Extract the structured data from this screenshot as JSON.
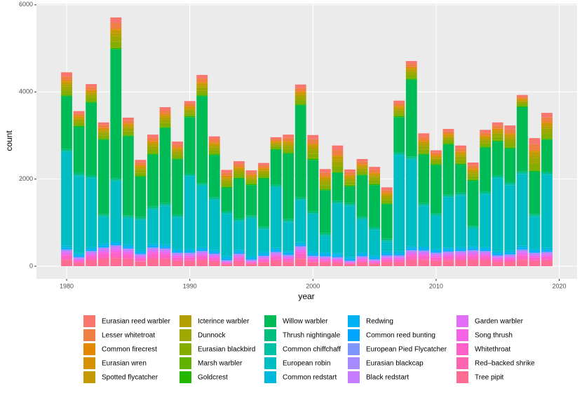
{
  "chart_data": {
    "type": "bar",
    "stacked": true,
    "xlabel": "year",
    "ylabel": "count",
    "x": [
      1980,
      1981,
      1982,
      1983,
      1984,
      1985,
      1986,
      1987,
      1988,
      1989,
      1990,
      1991,
      1992,
      1993,
      1994,
      1995,
      1996,
      1997,
      1998,
      1999,
      2000,
      2001,
      2002,
      2003,
      2004,
      2005,
      2006,
      2007,
      2008,
      2009,
      2010,
      2011,
      2012,
      2013,
      2014,
      2015,
      2016,
      2017,
      2018,
      2019
    ],
    "xlim": [
      1977.55,
      2021.45
    ],
    "xticks": [
      1980,
      1990,
      2000,
      2010,
      2020
    ],
    "ylim": [
      -290,
      6030
    ],
    "yticks": [
      0,
      2000,
      4000,
      6000
    ],
    "grid": true,
    "series": [
      {
        "name": "Eurasian reed warbler",
        "color": "#F8766D",
        "values": [
          94,
          56,
          70,
          64,
          130,
          70,
          62,
          76,
          80,
          66,
          58,
          82,
          70,
          66,
          64,
          52,
          56,
          42,
          72,
          80,
          98,
          82,
          110,
          62,
          60,
          68,
          62,
          60,
          70,
          82,
          52,
          56,
          72,
          68,
          66,
          72,
          90,
          40,
          138,
          108
        ]
      },
      {
        "name": "Lesser whitetroat",
        "color": "#EE8043",
        "values": [
          94,
          56,
          70,
          64,
          130,
          70,
          62,
          76,
          80,
          66,
          58,
          82,
          70,
          66,
          64,
          52,
          56,
          42,
          72,
          80,
          98,
          82,
          110,
          62,
          60,
          68,
          62,
          60,
          70,
          82,
          52,
          56,
          72,
          68,
          66,
          72,
          90,
          40,
          138,
          108
        ]
      },
      {
        "name": "Common firecrest",
        "color": "#E38900",
        "values": [
          20,
          20,
          20,
          20,
          20,
          20,
          20,
          20,
          20,
          20,
          20,
          20,
          20,
          20,
          20,
          20,
          20,
          20,
          20,
          20,
          20,
          20,
          20,
          20,
          20,
          20,
          20,
          20,
          20,
          20,
          20,
          20,
          20,
          20,
          20,
          20,
          20,
          20,
          20,
          20
        ]
      },
      {
        "name": "Eurasian wren",
        "color": "#D59100",
        "values": [
          20,
          20,
          20,
          20,
          20,
          20,
          20,
          20,
          20,
          20,
          20,
          20,
          20,
          20,
          20,
          20,
          20,
          20,
          20,
          20,
          20,
          20,
          20,
          20,
          20,
          20,
          20,
          20,
          20,
          20,
          20,
          20,
          20,
          20,
          20,
          20,
          20,
          20,
          20,
          20
        ]
      },
      {
        "name": "Spotted flycatcher",
        "color": "#C59900",
        "values": [
          47,
          28,
          35,
          32,
          65,
          35,
          31,
          38,
          40,
          33,
          29,
          41,
          35,
          33,
          32,
          26,
          28,
          21,
          36,
          40,
          49,
          41,
          55,
          31,
          30,
          34,
          31,
          30,
          35,
          41,
          26,
          28,
          36,
          34,
          33,
          36,
          45,
          20,
          69,
          54
        ]
      },
      {
        "name": "Icterince warbler",
        "color": "#B3A000",
        "values": [
          47,
          28,
          35,
          32,
          65,
          35,
          31,
          38,
          40,
          33,
          29,
          41,
          35,
          33,
          32,
          26,
          28,
          21,
          36,
          40,
          49,
          41,
          55,
          31,
          30,
          34,
          31,
          30,
          35,
          41,
          26,
          28,
          36,
          34,
          33,
          36,
          45,
          20,
          69,
          54
        ]
      },
      {
        "name": "Dunnock",
        "color": "#9DA700",
        "values": [
          94,
          56,
          70,
          64,
          130,
          70,
          62,
          76,
          80,
          66,
          58,
          82,
          70,
          66,
          64,
          52,
          56,
          42,
          72,
          80,
          98,
          82,
          110,
          62,
          60,
          68,
          62,
          60,
          70,
          82,
          52,
          56,
          72,
          68,
          66,
          72,
          90,
          40,
          138,
          108
        ]
      },
      {
        "name": "Eurasian blackbird",
        "color": "#85AD00",
        "values": [
          94,
          56,
          70,
          64,
          130,
          70,
          62,
          76,
          80,
          66,
          58,
          82,
          70,
          66,
          64,
          52,
          56,
          42,
          72,
          80,
          98,
          82,
          110,
          62,
          60,
          68,
          62,
          60,
          70,
          82,
          52,
          56,
          72,
          68,
          66,
          72,
          90,
          40,
          138,
          108
        ]
      },
      {
        "name": "Marsh warbler",
        "color": "#62B200",
        "values": [
          20,
          20,
          20,
          20,
          20,
          20,
          20,
          20,
          20,
          20,
          20,
          20,
          20,
          20,
          20,
          20,
          20,
          20,
          20,
          20,
          20,
          20,
          20,
          20,
          20,
          20,
          20,
          20,
          20,
          20,
          20,
          20,
          20,
          20,
          20,
          20,
          20,
          20,
          20,
          20
        ]
      },
      {
        "name": "Goldcrest",
        "color": "#24B700",
        "values": [
          20,
          20,
          20,
          20,
          20,
          20,
          20,
          20,
          20,
          20,
          20,
          20,
          20,
          20,
          20,
          20,
          20,
          20,
          20,
          20,
          20,
          20,
          20,
          20,
          20,
          20,
          20,
          20,
          20,
          20,
          20,
          20,
          20,
          20,
          20,
          20,
          20,
          20,
          20,
          20
        ]
      },
      {
        "name": "Willow warbler",
        "color": "#00BC56",
        "values": [
          1210,
          1060,
          1660,
          1700,
          2960,
          1810,
          920,
          1190,
          1720,
          1260,
          1290,
          1990,
          960,
          530,
          910,
          690,
          1100,
          790,
          1500,
          2110,
          1180,
          980,
          640,
          380,
          940,
          960,
          790,
          800,
          1760,
          1110,
          1100,
          1140,
          640,
          1030,
          1000,
          770,
          770,
          1470,
          970,
          730
        ]
      },
      {
        "name": "Thrush nightingale",
        "color": "#00BF7D",
        "values": [
          40,
          40,
          40,
          40,
          40,
          40,
          40,
          40,
          40,
          40,
          40,
          40,
          40,
          40,
          40,
          40,
          40,
          40,
          40,
          40,
          40,
          40,
          40,
          40,
          40,
          40,
          40,
          40,
          40,
          40,
          40,
          40,
          40,
          40,
          40,
          40,
          40,
          40,
          40,
          40
        ]
      },
      {
        "name": "Common chiffchaff",
        "color": "#00C0A6",
        "values": [
          30,
          30,
          30,
          30,
          30,
          30,
          30,
          30,
          30,
          30,
          30,
          30,
          30,
          30,
          30,
          30,
          30,
          30,
          30,
          30,
          30,
          30,
          30,
          30,
          30,
          30,
          30,
          30,
          30,
          30,
          30,
          30,
          30,
          30,
          30,
          30,
          30,
          30,
          30,
          30
        ]
      },
      {
        "name": "European robin",
        "color": "#00BFC4",
        "values": [
          2150,
          1770,
          1580,
          610,
          1380,
          600,
          690,
          780,
          880,
          720,
          1660,
          1400,
          1140,
          970,
          650,
          860,
          510,
          1390,
          660,
          960,
          860,
          370,
          1130,
          1160,
          750,
          580,
          220,
          2210,
          1990,
          930,
          750,
          1150,
          1180,
          400,
          1210,
          1680,
          1500,
          1640,
          730,
          1680
        ]
      },
      {
        "name": "Common redstart",
        "color": "#00BADE",
        "values": [
          40,
          40,
          40,
          40,
          40,
          40,
          40,
          40,
          40,
          40,
          40,
          40,
          40,
          40,
          40,
          40,
          40,
          40,
          40,
          40,
          40,
          40,
          40,
          40,
          40,
          40,
          40,
          40,
          40,
          40,
          40,
          40,
          40,
          40,
          40,
          40,
          40,
          40,
          40,
          40
        ]
      },
      {
        "name": "Redwing",
        "color": "#00B2F3",
        "values": [
          30,
          30,
          30,
          30,
          30,
          30,
          30,
          30,
          30,
          30,
          30,
          30,
          30,
          30,
          30,
          30,
          30,
          30,
          30,
          30,
          30,
          30,
          30,
          30,
          30,
          30,
          30,
          30,
          30,
          30,
          30,
          30,
          30,
          30,
          30,
          30,
          30,
          30,
          30,
          30
        ]
      },
      {
        "name": "Common reed bunting",
        "color": "#00A5FF",
        "values": [
          20,
          20,
          20,
          20,
          20,
          20,
          20,
          20,
          20,
          20,
          20,
          20,
          20,
          20,
          20,
          20,
          20,
          20,
          20,
          20,
          20,
          20,
          20,
          20,
          20,
          20,
          20,
          20,
          20,
          20,
          20,
          20,
          20,
          20,
          20,
          20,
          20,
          20,
          20,
          20
        ]
      },
      {
        "name": "European Pied Flycatcher",
        "color": "#7F96FF",
        "values": [
          10,
          10,
          10,
          10,
          10,
          10,
          10,
          10,
          10,
          10,
          10,
          10,
          10,
          10,
          10,
          10,
          10,
          10,
          10,
          10,
          10,
          10,
          10,
          10,
          10,
          10,
          10,
          10,
          10,
          10,
          10,
          10,
          10,
          10,
          10,
          10,
          10,
          10,
          10,
          10
        ]
      },
      {
        "name": "Eurasian blackcap",
        "color": "#A58AFF",
        "values": [
          20,
          20,
          20,
          20,
          20,
          20,
          20,
          20,
          20,
          20,
          20,
          20,
          20,
          20,
          20,
          20,
          20,
          20,
          20,
          20,
          20,
          20,
          20,
          20,
          20,
          20,
          20,
          20,
          20,
          20,
          20,
          20,
          20,
          20,
          20,
          20,
          20,
          20,
          20,
          20
        ]
      },
      {
        "name": "Black redstart",
        "color": "#C77CFF",
        "values": [
          35,
          18,
          32,
          40,
          45,
          38,
          25,
          40,
          38,
          28,
          28,
          32,
          26,
          11,
          26,
          12,
          21,
          30,
          23,
          43,
          21,
          20,
          18,
          10,
          20,
          13,
          22,
          22,
          34,
          33,
          28,
          31,
          32,
          34,
          32,
          22,
          24,
          35,
          28,
          30
        ]
      },
      {
        "name": "Garden warbler",
        "color": "#E26EF7",
        "values": [
          35,
          18,
          32,
          40,
          45,
          38,
          25,
          40,
          38,
          28,
          28,
          32,
          26,
          11,
          26,
          12,
          21,
          30,
          23,
          43,
          21,
          20,
          18,
          10,
          20,
          13,
          22,
          22,
          34,
          33,
          28,
          31,
          32,
          34,
          32,
          22,
          24,
          35,
          28,
          30
        ]
      },
      {
        "name": "Song thrush",
        "color": "#F564E3",
        "values": [
          35,
          18,
          32,
          40,
          45,
          38,
          25,
          40,
          38,
          28,
          28,
          32,
          26,
          11,
          26,
          12,
          21,
          30,
          23,
          43,
          21,
          20,
          18,
          10,
          20,
          13,
          22,
          22,
          34,
          33,
          28,
          31,
          32,
          34,
          32,
          22,
          24,
          35,
          28,
          30
        ]
      },
      {
        "name": "Whitethroat",
        "color": "#FF61C9",
        "values": [
          70,
          36,
          64,
          80,
          90,
          76,
          50,
          80,
          76,
          56,
          56,
          64,
          52,
          22,
          52,
          24,
          42,
          60,
          46,
          86,
          42,
          40,
          36,
          20,
          40,
          26,
          44,
          44,
          68,
          66,
          56,
          62,
          64,
          68,
          64,
          44,
          48,
          70,
          56,
          60
        ]
      },
      {
        "name": "Red–backed shrike",
        "color": "#FF64B0",
        "values": [
          35,
          18,
          32,
          40,
          45,
          38,
          25,
          40,
          38,
          28,
          28,
          32,
          26,
          11,
          26,
          12,
          21,
          30,
          23,
          43,
          21,
          20,
          18,
          10,
          20,
          13,
          22,
          22,
          34,
          33,
          28,
          31,
          32,
          34,
          32,
          22,
          24,
          35,
          28,
          30
        ]
      },
      {
        "name": "Tree pipit",
        "color": "#FF6C91",
        "values": [
          140,
          72,
          128,
          160,
          180,
          152,
          100,
          160,
          152,
          112,
          112,
          128,
          104,
          44,
          104,
          48,
          84,
          120,
          92,
          172,
          84,
          80,
          72,
          40,
          80,
          52,
          88,
          88,
          136,
          132,
          112,
          124,
          128,
          136,
          128,
          88,
          96,
          140,
          112,
          120
        ]
      }
    ]
  }
}
